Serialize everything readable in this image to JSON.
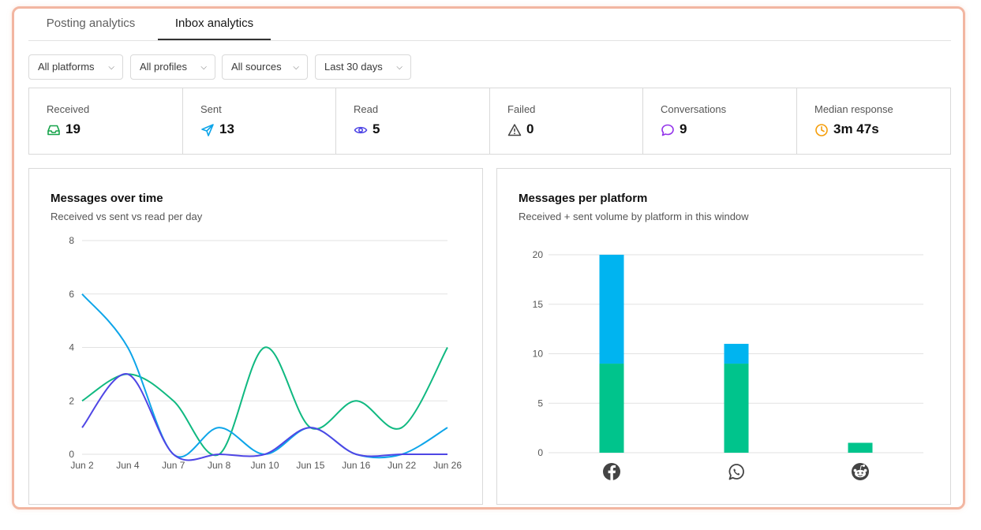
{
  "tabs": [
    {
      "label": "Posting analytics",
      "active": false
    },
    {
      "label": "Inbox analytics",
      "active": true
    }
  ],
  "filters": [
    {
      "label": "All platforms"
    },
    {
      "label": "All profiles"
    },
    {
      "label": "All sources"
    },
    {
      "label": "Last 30 days"
    }
  ],
  "stats": [
    {
      "label": "Received",
      "value": "19",
      "icon": "inbox-icon",
      "color": "#16a34a"
    },
    {
      "label": "Sent",
      "value": "13",
      "icon": "send-icon",
      "color": "#0ea5e9"
    },
    {
      "label": "Read",
      "value": "5",
      "icon": "eye-icon",
      "color": "#4f46e5"
    },
    {
      "label": "Failed",
      "value": "0",
      "icon": "warning-icon",
      "color": "#444444"
    },
    {
      "label": "Conversations",
      "value": "9",
      "icon": "chat-bubble-icon",
      "color": "#9333ea"
    },
    {
      "label": "Median response",
      "value": "3m 47s",
      "icon": "clock-icon",
      "color": "#f59e0b"
    }
  ],
  "line_card": {
    "title": "Messages over time",
    "subtitle": "Received vs sent vs read per day"
  },
  "bar_card": {
    "title": "Messages per platform",
    "subtitle": "Received + sent volume by platform in this window"
  },
  "chart_data": [
    {
      "type": "line",
      "title": "Messages over time",
      "x": [
        "Jun 2",
        "Jun 4",
        "Jun 7",
        "Jun 8",
        "Jun 10",
        "Jun 15",
        "Jun 16",
        "Jun 22",
        "Jun 26"
      ],
      "ylim": [
        0,
        8
      ],
      "yticks": [
        0,
        2,
        4,
        6,
        8
      ],
      "grid": true,
      "series": [
        {
          "values": [
            2,
            3,
            2,
            0,
            4,
            1,
            2,
            1,
            4
          ],
          "color": "#10b981"
        },
        {
          "values": [
            6,
            4,
            0,
            1,
            0,
            1,
            0,
            0,
            1
          ],
          "color": "#0ea5e9"
        },
        {
          "values": [
            1,
            3,
            0,
            0,
            0,
            1,
            0,
            0,
            0
          ],
          "color": "#4f46e5"
        }
      ]
    },
    {
      "type": "bar",
      "title": "Messages per platform",
      "categories": [
        "facebook",
        "whatsapp",
        "reddit"
      ],
      "category_icons": [
        "facebook-icon",
        "whatsapp-icon",
        "reddit-icon"
      ],
      "ylim": [
        0,
        20
      ],
      "yticks": [
        0,
        5,
        10,
        15,
        20
      ],
      "grid": true,
      "stacked": true,
      "series": [
        {
          "values": [
            9,
            9,
            1
          ],
          "color": "#00c48c"
        },
        {
          "values": [
            11,
            2,
            0
          ],
          "color": "#00b4f0"
        }
      ]
    }
  ]
}
